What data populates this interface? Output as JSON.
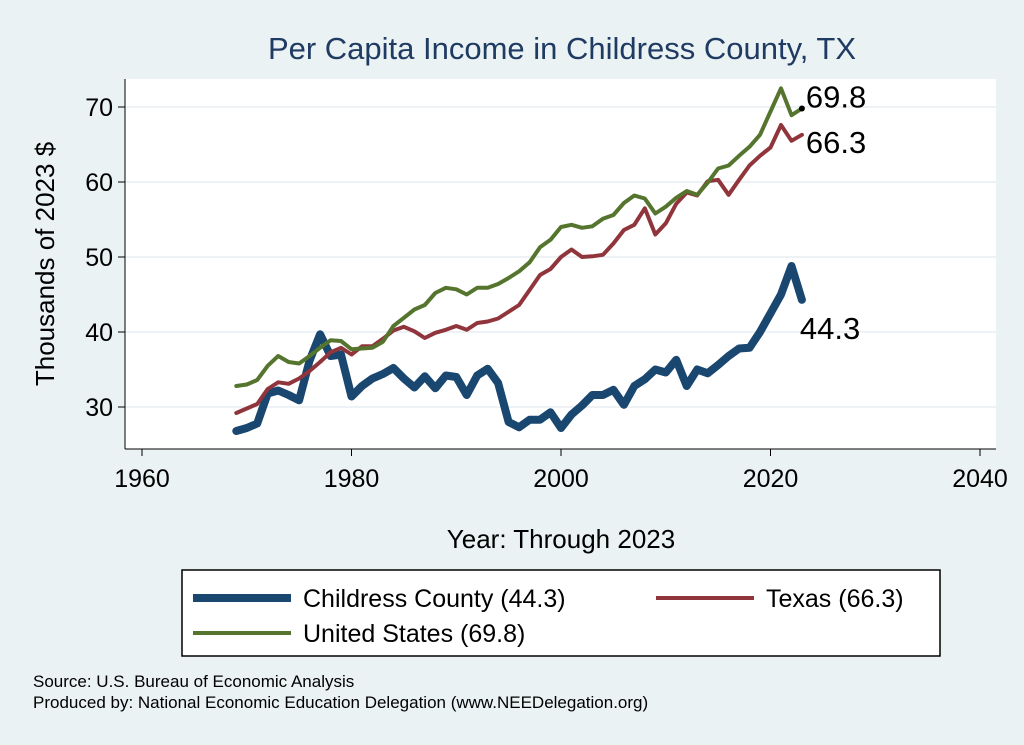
{
  "chart_data": {
    "type": "line",
    "title": "Per Capita Income in Childress County, TX",
    "xlabel": "Year: Through 2023",
    "ylabel": "Thousands of 2023 $",
    "xlim": [
      1960,
      2040
    ],
    "ylim": [
      25,
      75
    ],
    "xticks": [
      1960,
      1980,
      2000,
      2020,
      2040
    ],
    "yticks": [
      30,
      40,
      50,
      60,
      70
    ],
    "grid": true,
    "legend_position": "bottom",
    "x": [
      1969,
      1970,
      1971,
      1972,
      1973,
      1974,
      1975,
      1976,
      1977,
      1978,
      1979,
      1980,
      1981,
      1982,
      1983,
      1984,
      1985,
      1986,
      1987,
      1988,
      1989,
      1990,
      1991,
      1992,
      1993,
      1994,
      1995,
      1996,
      1997,
      1998,
      1999,
      2000,
      2001,
      2002,
      2003,
      2004,
      2005,
      2006,
      2007,
      2008,
      2009,
      2010,
      2011,
      2012,
      2013,
      2014,
      2015,
      2016,
      2017,
      2018,
      2019,
      2020,
      2021,
      2022,
      2023
    ],
    "series": [
      {
        "name": "Childress County",
        "legend_label": "Childress County (44.3)",
        "end_label": "44.3",
        "color": "#1a476f",
        "values": [
          26.8,
          27.2,
          27.8,
          31.8,
          32.2,
          31.6,
          30.9,
          36.2,
          39.7,
          36.8,
          37.0,
          31.4,
          32.8,
          33.8,
          34.4,
          35.2,
          33.8,
          32.6,
          34.1,
          32.5,
          34.2,
          34.0,
          31.6,
          34.2,
          35.1,
          33.2,
          28.0,
          27.3,
          28.3,
          28.3,
          29.3,
          27.2,
          29.0,
          30.2,
          31.6,
          31.6,
          32.3,
          30.3,
          32.8,
          33.7,
          35.0,
          34.6,
          36.3,
          32.8,
          35.0,
          34.5,
          35.6,
          36.8,
          37.8,
          37.9,
          40.0,
          42.5,
          45.0,
          48.8,
          44.3
        ]
      },
      {
        "name": "Texas",
        "legend_label": "Texas (66.3)",
        "end_label": "66.3",
        "color": "#90353b",
        "values": [
          29.2,
          29.8,
          30.4,
          32.4,
          33.3,
          33.1,
          33.8,
          34.8,
          36.0,
          37.3,
          37.9,
          37.0,
          38.1,
          38.1,
          39.1,
          40.2,
          40.7,
          40.1,
          39.2,
          39.9,
          40.3,
          40.8,
          40.3,
          41.2,
          41.4,
          41.8,
          42.7,
          43.6,
          45.6,
          47.6,
          48.4,
          50.0,
          51.0,
          50.0,
          50.1,
          50.3,
          51.8,
          53.6,
          54.3,
          56.5,
          53.0,
          54.5,
          57.1,
          58.6,
          58.2,
          60.1,
          60.3,
          58.3,
          60.3,
          62.2,
          63.5,
          64.6,
          67.6,
          65.5,
          66.3
        ]
      },
      {
        "name": "United States",
        "legend_label": "United States (69.8)",
        "end_label": "69.8",
        "color": "#55752f",
        "values": [
          32.8,
          33.0,
          33.6,
          35.5,
          36.8,
          36.0,
          35.8,
          36.8,
          37.9,
          38.9,
          38.8,
          37.7,
          37.8,
          37.9,
          38.7,
          40.8,
          41.9,
          43.0,
          43.6,
          45.2,
          45.9,
          45.7,
          45.0,
          45.9,
          45.9,
          46.4,
          47.2,
          48.1,
          49.3,
          51.3,
          52.3,
          54.0,
          54.3,
          53.9,
          54.1,
          55.1,
          55.6,
          57.2,
          58.2,
          57.8,
          55.8,
          56.7,
          57.9,
          58.8,
          58.3,
          59.9,
          61.8,
          62.2,
          63.5,
          64.7,
          66.3,
          69.4,
          72.5,
          68.9,
          69.8
        ]
      }
    ]
  },
  "footer": {
    "source": "Source: U.S. Bureau of Economic Analysis",
    "produced_by": "Produced by: National Economic Education Delegation (www.NEEDelegation.org)"
  }
}
